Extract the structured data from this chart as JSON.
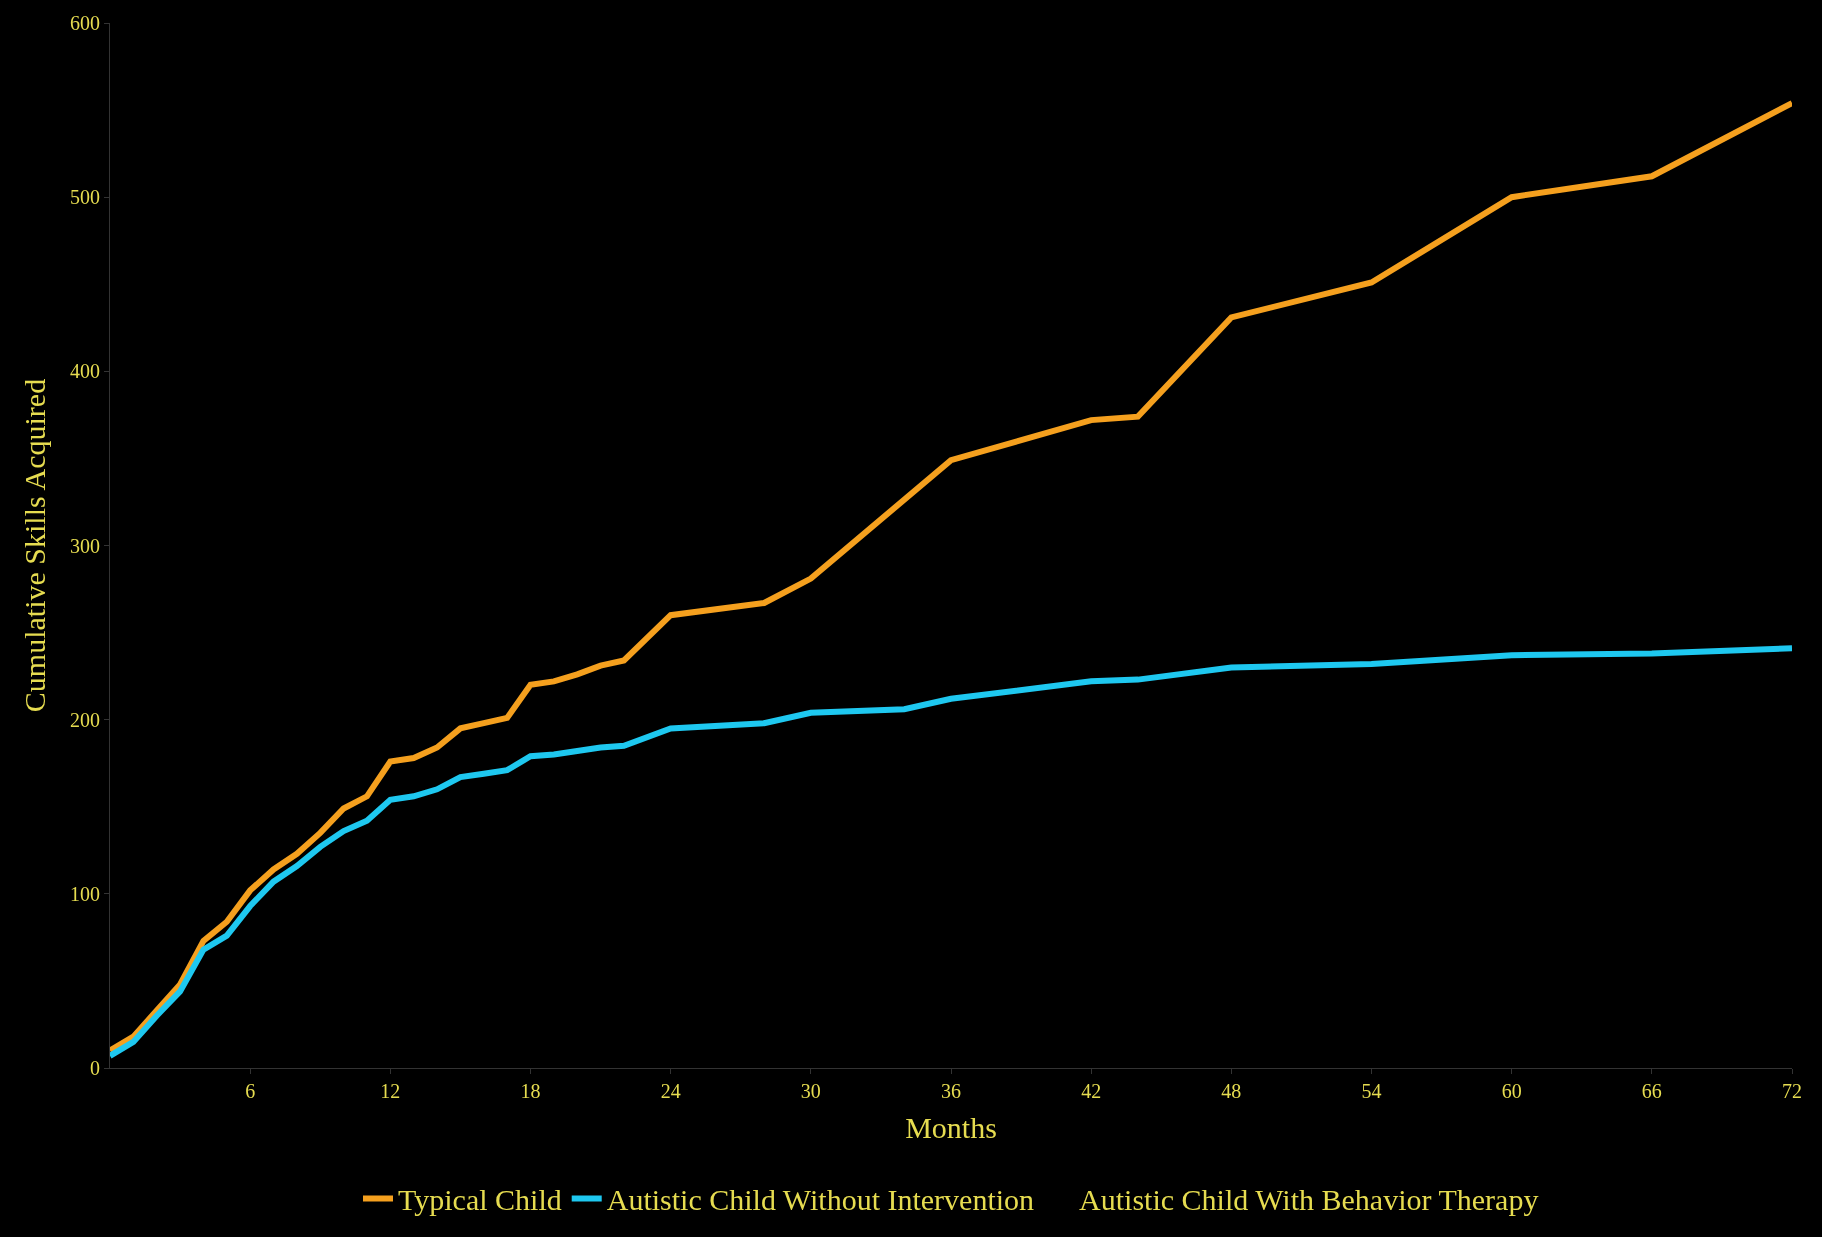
{
  "chart_data": {
    "type": "line",
    "xlabel": "Months",
    "ylabel": "Cumulative Skills Acquired",
    "xlim": [
      0,
      72
    ],
    "xticks": [
      6,
      12,
      18,
      24,
      30,
      36,
      42,
      48,
      54,
      60,
      66,
      72
    ],
    "ylim": [
      0,
      600
    ],
    "yticks": [
      0,
      100,
      200,
      300,
      400,
      500,
      600
    ],
    "grid": false,
    "legend": "bottom",
    "marker": "none",
    "line_style": "solid",
    "series": [
      {
        "name": "Typical Child",
        "color": "#f5a01e",
        "x": [
          0,
          1,
          2,
          3,
          4,
          5,
          6,
          7,
          8,
          9,
          10,
          11,
          12,
          13,
          14,
          15,
          16,
          17,
          18,
          19,
          20,
          21,
          22,
          24,
          28,
          30,
          36,
          42,
          44,
          48,
          54,
          60,
          66,
          72
        ],
        "values": [
          10,
          18,
          33,
          48,
          73,
          84,
          102,
          114,
          123,
          135,
          149,
          156,
          176,
          178,
          184,
          195,
          198,
          201,
          220,
          222,
          226,
          231,
          234,
          260,
          267,
          281,
          349,
          372,
          374,
          431,
          451,
          500,
          512,
          554
        ]
      },
      {
        "name": "Autistic Child Without Intervention",
        "color": "#1ec8f0",
        "x": [
          0,
          1,
          2,
          3,
          4,
          5,
          6,
          7,
          8,
          9,
          10,
          11,
          12,
          13,
          14,
          15,
          16,
          17,
          18,
          19,
          20,
          21,
          22,
          24,
          28,
          30,
          34,
          36,
          42,
          44,
          48,
          54,
          60,
          66,
          72
        ],
        "values": [
          7,
          15,
          30,
          44,
          68,
          76,
          93,
          107,
          116,
          127,
          136,
          142,
          154,
          156,
          160,
          167,
          169,
          171,
          179,
          180,
          182,
          184,
          185,
          195,
          198,
          204,
          206,
          212,
          222,
          223,
          230,
          232,
          237,
          238,
          241
        ]
      },
      {
        "name": "Autistic Child With Behavior Therapy"
      }
    ]
  }
}
